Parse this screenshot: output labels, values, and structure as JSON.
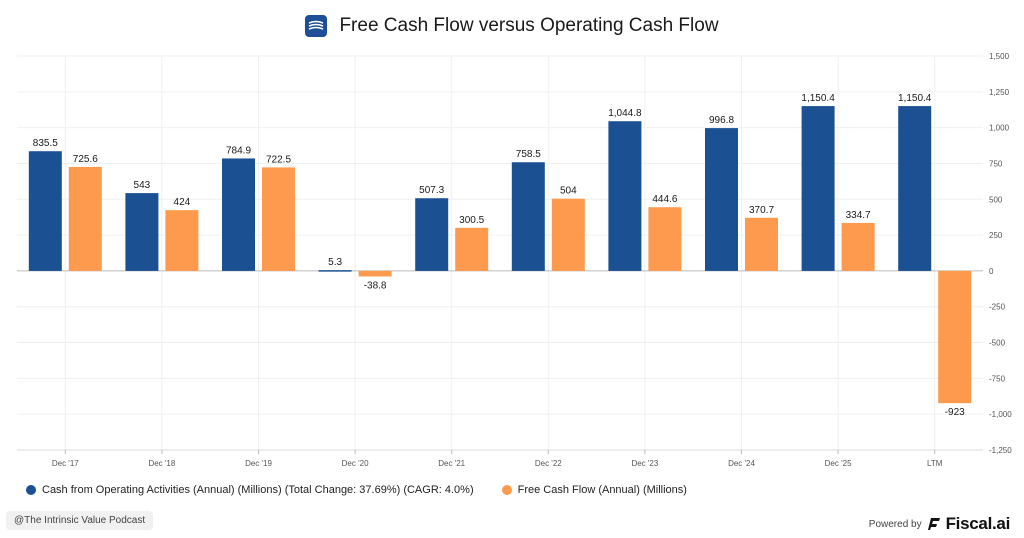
{
  "header": {
    "title": "Free Cash Flow versus Operating Cash Flow",
    "logo_color": "#1f4f99"
  },
  "chart_data": {
    "type": "bar",
    "categories": [
      "Dec '17",
      "Dec '18",
      "Dec '19",
      "Dec '20",
      "Dec '21",
      "Dec '22",
      "Dec '23",
      "Dec '24",
      "Dec '25",
      "LTM"
    ],
    "series": [
      {
        "name": "Cash from Operating Activities (Annual) (Millions) (Total Change: 37.69%) (CAGR: 4.0%)",
        "color": "#1b5193",
        "values": [
          835.5,
          543,
          784.9,
          5.3,
          507.3,
          758.5,
          1044.8,
          996.8,
          1150.4,
          1150.4
        ],
        "labels": [
          "835.5",
          "543",
          "784.9",
          "5.3",
          "507.3",
          "758.5",
          "1,044.8",
          "996.8",
          "1,150.4",
          "1,150.4"
        ]
      },
      {
        "name": "Free Cash Flow (Annual) (Millions)",
        "color": "#fd9a4e",
        "values": [
          725.6,
          424,
          722.5,
          -38.8,
          300.5,
          504,
          444.6,
          370.7,
          334.7,
          -923
        ],
        "labels": [
          "725.6",
          "424",
          "722.5",
          "-38.8",
          "300.5",
          "504",
          "444.6",
          "370.7",
          "334.7",
          "-923"
        ]
      }
    ],
    "ylim": [
      -1250,
      1500
    ],
    "yticks": [
      1500,
      1250,
      1000,
      750,
      500,
      250,
      0,
      -250,
      -500,
      -750,
      -1000,
      -1250
    ],
    "ytick_labels": [
      "1,500",
      "1,250",
      "1,000",
      "750",
      "500",
      "250",
      "0",
      "-250",
      "-500",
      "-750",
      "-1,000",
      "-1,250"
    ],
    "grid": true,
    "legend": "bottom-left"
  },
  "legend": {
    "items": [
      {
        "label": "Cash from Operating Activities (Annual) (Millions) (Total Change: 37.69%) (CAGR: 4.0%)",
        "color": "#1b5193"
      },
      {
        "label": "Free Cash Flow (Annual) (Millions)",
        "color": "#fd9a4e"
      }
    ]
  },
  "footer": {
    "watermark": "@The Intrinsic Value Podcast",
    "powered_by": "Powered by",
    "brand": "Fiscal.ai"
  }
}
